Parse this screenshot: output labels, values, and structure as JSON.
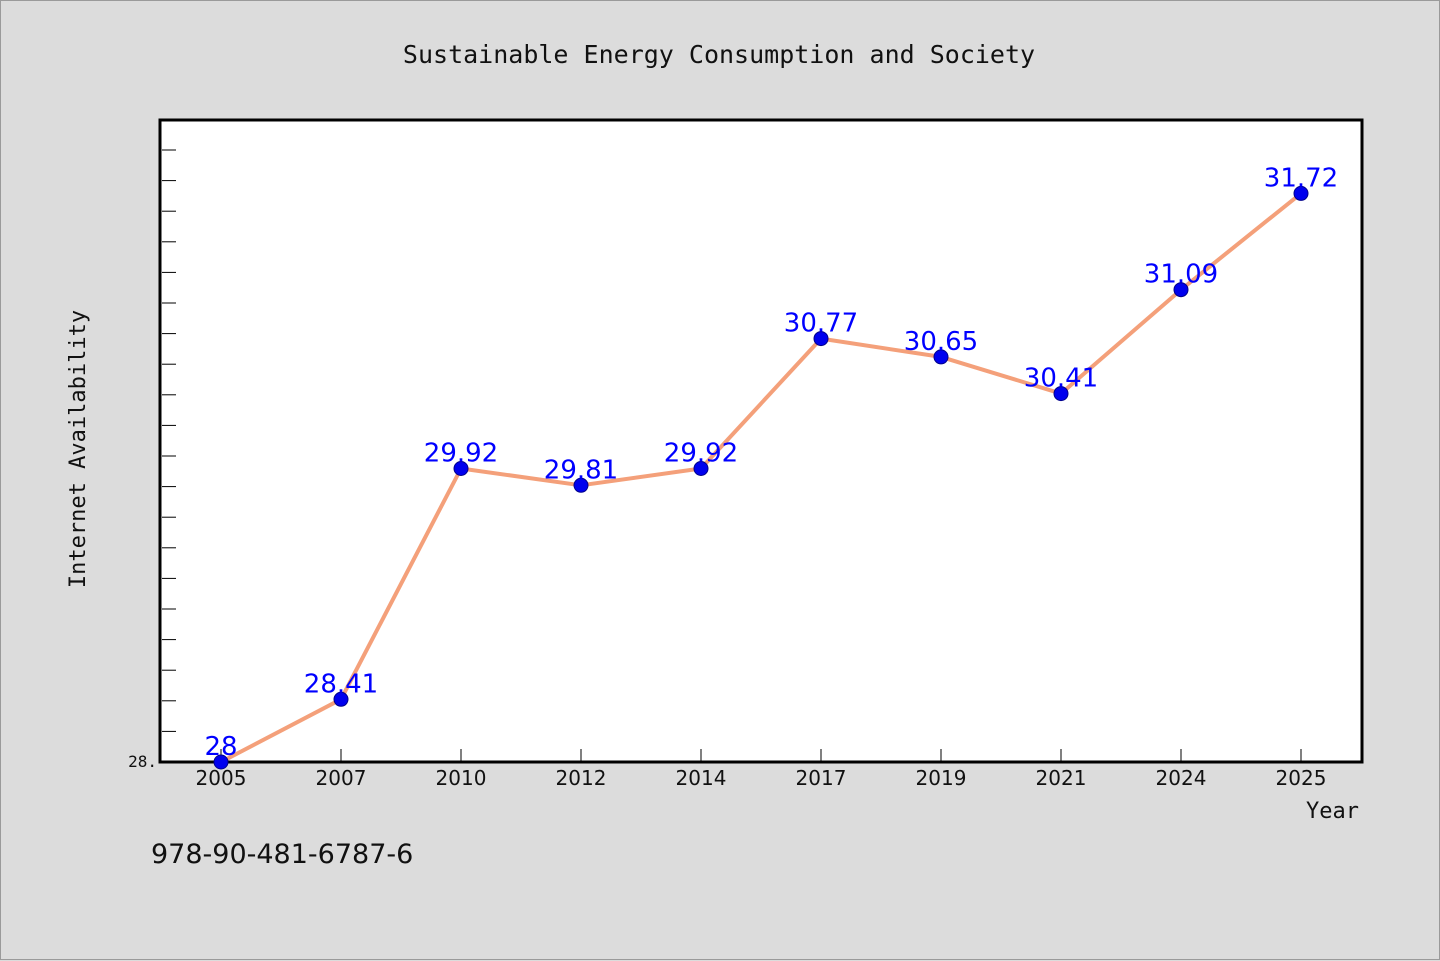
{
  "chart_data": {
    "type": "line",
    "title": "Sustainable Energy Consumption and Society",
    "xlabel": "Year",
    "ylabel": "Internet Availability",
    "categories": [
      "2005",
      "2007",
      "2010",
      "2012",
      "2014",
      "2017",
      "2019",
      "2021",
      "2024",
      "2025"
    ],
    "series": [
      {
        "values": [
          28,
          28.41,
          29.92,
          29.81,
          29.92,
          30.77,
          30.65,
          30.41,
          31.09,
          31.72
        ]
      }
    ],
    "y_tick_label": "28.",
    "ylim": [
      28,
      32.2
    ],
    "grid": false,
    "legend": "none",
    "colors": {
      "line": "#f4a07a",
      "marker": "#0000ee",
      "data_label": "#0000ff",
      "plot_bg": "#ffffff",
      "page_bg": "#dcdcdc"
    }
  },
  "footer": {
    "isbn": "978-90-481-6787-6"
  }
}
